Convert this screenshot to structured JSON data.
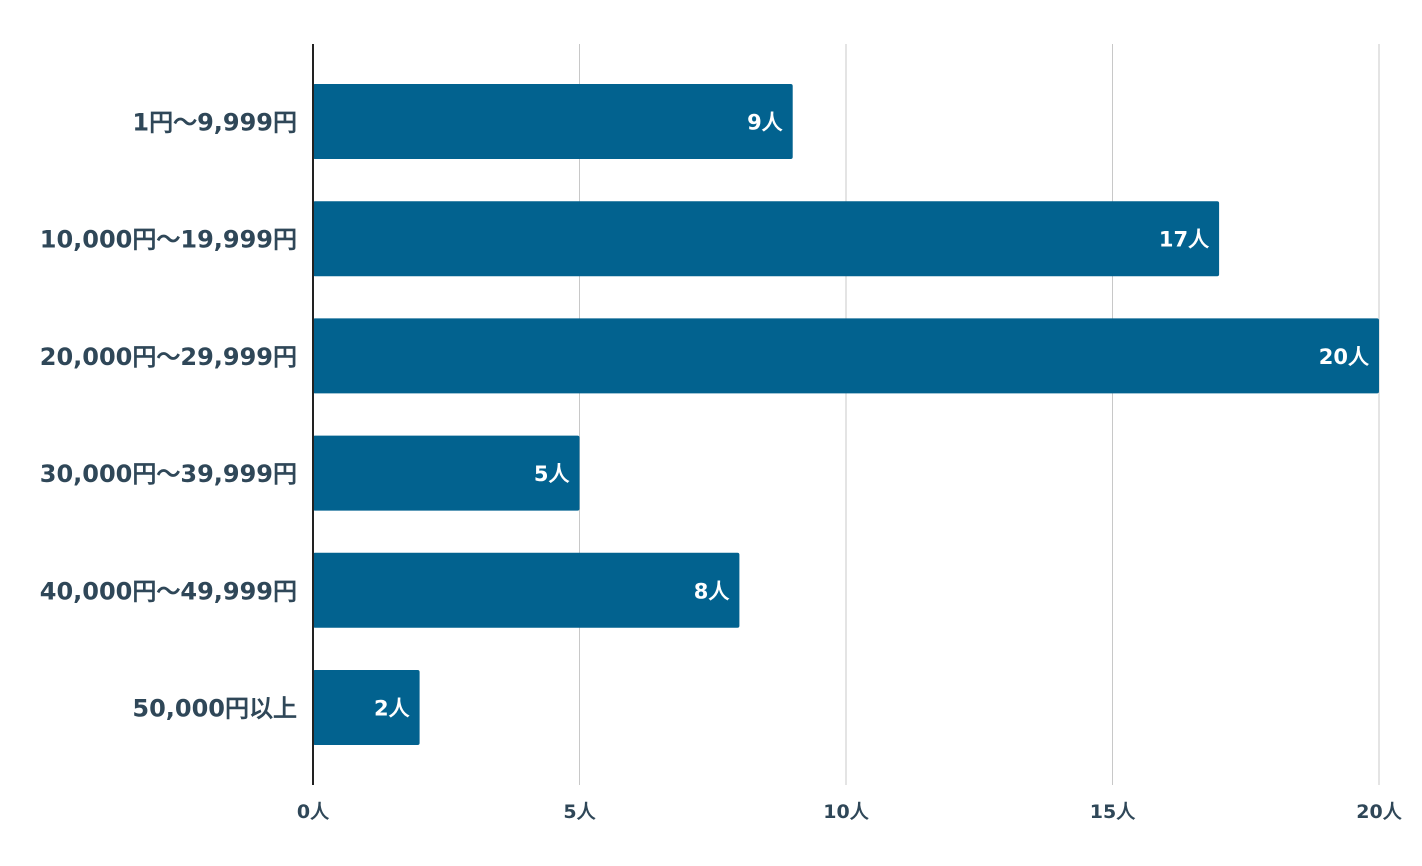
{
  "chart_data": {
    "type": "bar",
    "orientation": "horizontal",
    "title": "",
    "xlabel": "",
    "ylabel": "",
    "unit": "人",
    "categories": [
      "1円〜9,999円",
      "10,000円〜19,999円",
      "20,000円〜29,999円",
      "30,000円〜39,999円",
      "40,000円〜49,999円",
      "50,000円以上"
    ],
    "values": [
      9,
      17,
      20,
      5,
      8,
      2
    ],
    "data_labels": [
      "9人",
      "17人",
      "20人",
      "5人",
      "8人",
      "2人"
    ],
    "xlim": [
      0,
      20
    ],
    "x_ticks": [
      0,
      5,
      10,
      15,
      20
    ],
    "x_tick_labels": [
      "0人",
      "5人",
      "10人",
      "15人",
      "20人"
    ],
    "grid": "vertical",
    "legend": "none",
    "colors": {
      "bar": "#02628f",
      "label_text": "#2f4758",
      "data_label_text": "#ffffff",
      "grid": "#c8c8c8",
      "axis": "#222222"
    }
  }
}
